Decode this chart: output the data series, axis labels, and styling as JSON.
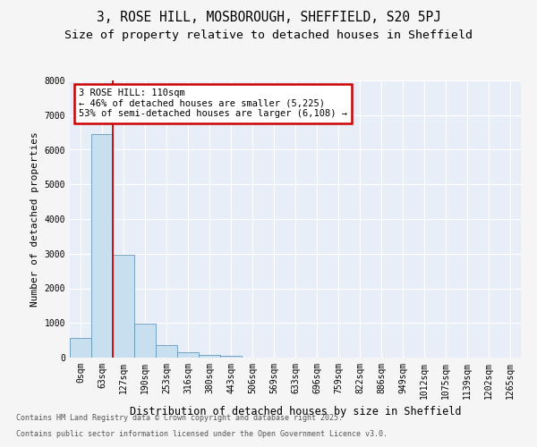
{
  "title_line1": "3, ROSE HILL, MOSBOROUGH, SHEFFIELD, S20 5PJ",
  "title_line2": "Size of property relative to detached houses in Sheffield",
  "xlabel": "Distribution of detached houses by size in Sheffield",
  "ylabel": "Number of detached properties",
  "bar_color": "#c8dff0",
  "bar_edge_color": "#6699bb",
  "background_color": "#e8eef8",
  "grid_color": "#ffffff",
  "categories": [
    "0sqm",
    "63sqm",
    "127sqm",
    "190sqm",
    "253sqm",
    "316sqm",
    "380sqm",
    "443sqm",
    "506sqm",
    "569sqm",
    "633sqm",
    "696sqm",
    "759sqm",
    "822sqm",
    "886sqm",
    "949sqm",
    "1012sqm",
    "1075sqm",
    "1139sqm",
    "1202sqm",
    "1265sqm"
  ],
  "values": [
    560,
    6450,
    2980,
    990,
    370,
    165,
    80,
    50,
    0,
    0,
    0,
    0,
    0,
    0,
    0,
    0,
    0,
    0,
    0,
    0,
    0
  ],
  "ylim": [
    0,
    8000
  ],
  "yticks": [
    0,
    1000,
    2000,
    3000,
    4000,
    5000,
    6000,
    7000,
    8000
  ],
  "vline_x": 1.5,
  "annotation_text_line1": "3 ROSE HILL: 110sqm",
  "annotation_text_line2": "← 46% of detached houses are smaller (5,225)",
  "annotation_text_line3": "53% of semi-detached houses are larger (6,108) →",
  "annotation_box_color": "#ffffff",
  "annotation_border_color": "#cc0000",
  "vline_color": "#cc0000",
  "footer_line1": "Contains HM Land Registry data © Crown copyright and database right 2025.",
  "footer_line2": "Contains public sector information licensed under the Open Government Licence v3.0.",
  "fig_bg_color": "#f5f5f5",
  "title_fontsize": 10.5,
  "subtitle_fontsize": 9.5,
  "tick_fontsize": 7,
  "ylabel_fontsize": 8,
  "xlabel_fontsize": 8.5,
  "footer_fontsize": 6
}
